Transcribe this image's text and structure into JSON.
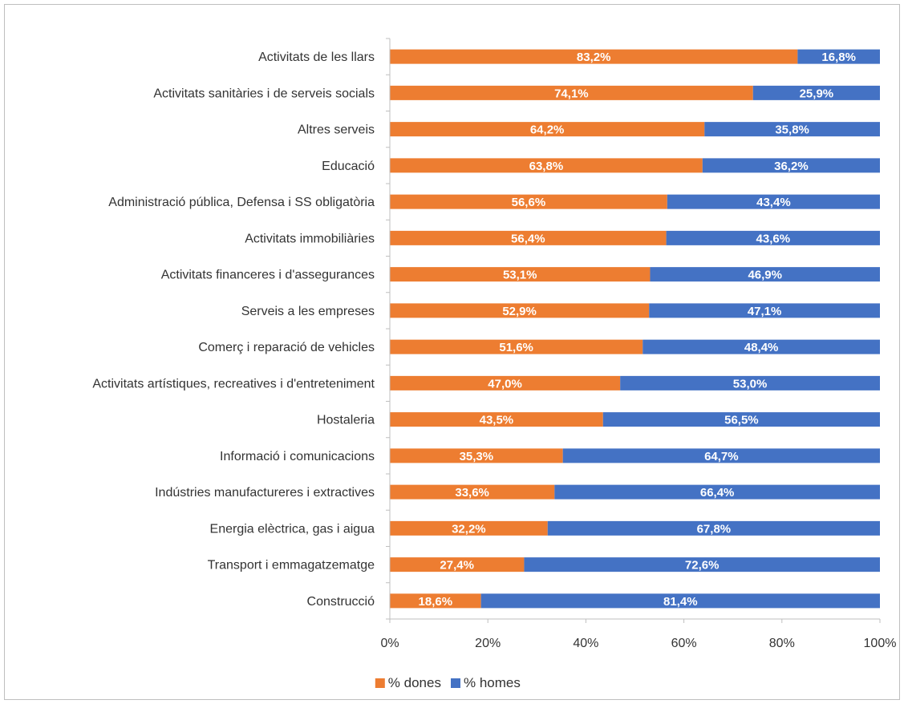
{
  "chart_data": {
    "type": "bar",
    "orientation": "horizontal",
    "stacked": true,
    "categories": [
      "Activitats de les llars",
      "Activitats sanitàries i de serveis socials",
      "Altres serveis",
      "Educació",
      "Administració pública, Defensa i SS obligatòria",
      "Activitats immobiliàries",
      "Activitats financeres i d'assegurances",
      "Serveis a les empreses",
      "Comerç i reparació de vehicles",
      "Activitats artístiques, recreatives i d'entreteniment",
      "Hostaleria",
      "Informació i comunicacions",
      "Indústries manufactureres i extractives",
      "Energia elèctrica, gas i aigua",
      "Transport i emmagatzematge",
      "Construcció"
    ],
    "series": [
      {
        "name": "% dones",
        "color": "#ed7d31",
        "values": [
          83.2,
          74.1,
          64.2,
          63.8,
          56.6,
          56.4,
          53.1,
          52.9,
          51.6,
          47.0,
          43.5,
          35.3,
          33.6,
          32.2,
          27.4,
          18.6
        ],
        "labels": [
          "83,2%",
          "74,1%",
          "64,2%",
          "63,8%",
          "56,6%",
          "56,4%",
          "53,1%",
          "52,9%",
          "51,6%",
          "47,0%",
          "43,5%",
          "35,3%",
          "33,6%",
          "32,2%",
          "27,4%",
          "18,6%"
        ]
      },
      {
        "name": "% homes",
        "color": "#4472c4",
        "values": [
          16.8,
          25.9,
          35.8,
          36.2,
          43.4,
          43.6,
          46.9,
          47.1,
          48.4,
          53.0,
          56.5,
          64.7,
          66.4,
          67.8,
          72.6,
          81.4
        ],
        "labels": [
          "16,8%",
          "25,9%",
          "35,8%",
          "36,2%",
          "43,4%",
          "43,6%",
          "46,9%",
          "47,1%",
          "48,4%",
          "53,0%",
          "56,5%",
          "64,7%",
          "66,4%",
          "67,8%",
          "72,6%",
          "81,4%"
        ]
      }
    ],
    "x_ticks": [
      "0%",
      "20%",
      "40%",
      "60%",
      "80%",
      "100%"
    ],
    "xlim": [
      0,
      100
    ],
    "grid": false,
    "legend": "bottom",
    "title": "",
    "xlabel": "",
    "ylabel": ""
  }
}
